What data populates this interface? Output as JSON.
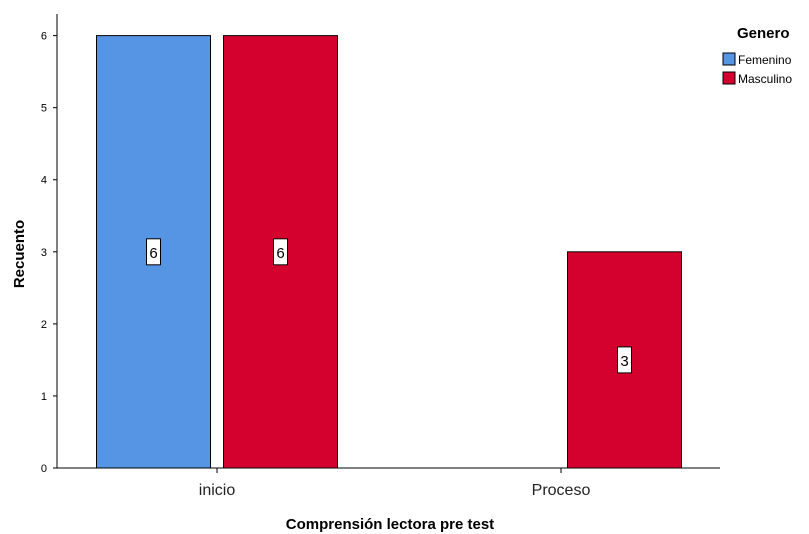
{
  "chart_data": {
    "type": "bar",
    "title": "",
    "xlabel": "Comprensión lectora pre test",
    "ylabel": "Recuento",
    "categories": [
      "inicio",
      "Proceso"
    ],
    "series": [
      {
        "name": "Femenino",
        "color": "#5694e4",
        "values": [
          6,
          null
        ]
      },
      {
        "name": "Masculino",
        "color": "#d4012f",
        "values": [
          6,
          3
        ]
      }
    ],
    "data_labels": [
      [
        "6",
        null
      ],
      [
        "6",
        "3"
      ]
    ],
    "yticks": [
      "0",
      "1",
      "2",
      "3",
      "4",
      "5",
      "6"
    ],
    "ylim": [
      0,
      6.3
    ],
    "grid": false,
    "legend": {
      "title": "Genero",
      "position": "top-right"
    }
  }
}
